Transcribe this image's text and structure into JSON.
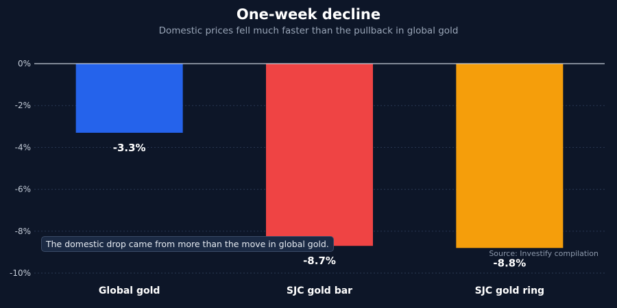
{
  "chart_data": {
    "type": "bar",
    "title": "One-week decline",
    "subtitle": "Domestic prices fell much faster than the pullback in global gold",
    "categories": [
      "Global gold",
      "SJC gold bar",
      "SJC gold ring"
    ],
    "values": [
      -3.3,
      -8.7,
      -8.8
    ],
    "data_labels": [
      "-3.3%",
      "-8.7%",
      "-8.8%"
    ],
    "colors": [
      "#2563eb",
      "#ef4444",
      "#f59e0b"
    ],
    "ylim": [
      -10,
      0
    ],
    "yticks": [
      0,
      -2,
      -4,
      -6,
      -8,
      -10
    ],
    "ytick_labels": [
      "0%",
      "-2%",
      "-4%",
      "-6%",
      "-8%",
      "-10%"
    ],
    "grid": true,
    "annotation": "The domestic drop came from more than the move in global gold.",
    "source": "Source: Investify compilation"
  }
}
